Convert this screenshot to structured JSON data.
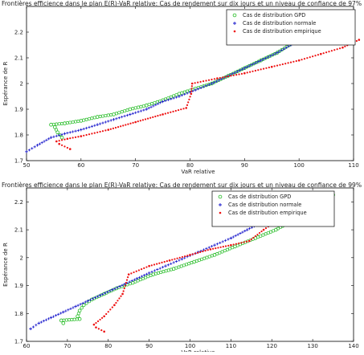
{
  "chart_data": [
    {
      "type": "scatter",
      "title": "Frontières efficience dans le plan E(R)-VaR relative: Cas de rendement sur dix jours et un niveau de confiance de 97%",
      "xlabel": "VaR relative",
      "ylabel": "Espérance de R",
      "xlim": [
        50,
        110
      ],
      "ylim": [
        1.7,
        2.3
      ],
      "xticks": [
        "50",
        "60",
        "70",
        "80",
        "90",
        "100",
        "110"
      ],
      "yticks": [
        "1.7",
        "1.8",
        "1.9",
        "2",
        "2.1",
        "2.2"
      ],
      "legend_position": "top-right",
      "series": [
        {
          "name": "Cas de distribution GPD",
          "marker": "circle",
          "color": "#22bb22",
          "points": [
            [
              56.5,
              1.79
            ],
            [
              55.7,
              1.81
            ],
            [
              55.2,
              1.83
            ],
            [
              54.5,
              1.84
            ],
            [
              57,
              1.845
            ],
            [
              60,
              1.855
            ],
            [
              63,
              1.87
            ],
            [
              66,
              1.88
            ],
            [
              69,
              1.9
            ],
            [
              72,
              1.915
            ],
            [
              75,
              1.935
            ],
            [
              78,
              1.96
            ],
            [
              81,
              1.98
            ],
            [
              84,
              2.0
            ],
            [
              87,
              2.03
            ],
            [
              90,
              2.06
            ],
            [
              93,
              2.09
            ],
            [
              96,
              2.12
            ],
            [
              99,
              2.16
            ],
            [
              101.5,
              2.19
            ],
            [
              103.5,
              2.21
            ],
            [
              105.5,
              2.235
            ]
          ]
        },
        {
          "name": "Cas de distribution normale",
          "marker": "plus",
          "color": "#1a1acc",
          "points": [
            [
              50,
              1.735
            ],
            [
              52,
              1.76
            ],
            [
              54.5,
              1.79
            ],
            [
              57,
              1.805
            ],
            [
              60,
              1.82
            ],
            [
              63,
              1.84
            ],
            [
              66,
              1.86
            ],
            [
              69,
              1.88
            ],
            [
              72,
              1.9
            ],
            [
              75,
              1.93
            ],
            [
              78,
              1.95
            ],
            [
              81,
              1.975
            ],
            [
              84,
              2.0
            ],
            [
              87,
              2.03
            ],
            [
              90,
              2.06
            ],
            [
              93,
              2.09
            ],
            [
              96,
              2.12
            ],
            [
              98.5,
              2.15
            ],
            [
              100.5,
              2.175
            ],
            [
              102.5,
              2.2
            ],
            [
              104.5,
              2.215
            ]
          ]
        },
        {
          "name": "Cas de distribution empirique",
          "marker": "dot",
          "color": "#ee1111",
          "points": [
            [
              58,
              1.745
            ],
            [
              56,
              1.765
            ],
            [
              55.5,
              1.775
            ],
            [
              57.5,
              1.785
            ],
            [
              60,
              1.795
            ],
            [
              65,
              1.82
            ],
            [
              70,
              1.85
            ],
            [
              75,
              1.88
            ],
            [
              79.3,
              1.905
            ],
            [
              80.2,
              1.96
            ],
            [
              80.4,
              2.0
            ],
            [
              85,
              2.02
            ],
            [
              90,
              2.04
            ],
            [
              95,
              2.065
            ],
            [
              100,
              2.09
            ],
            [
              104,
              2.115
            ],
            [
              108,
              2.14
            ],
            [
              111,
              2.17
            ]
          ]
        }
      ]
    },
    {
      "type": "scatter",
      "title": "Frontières efficience dans le plan E(R)-VaR relative: Cas de rendement sur dix jours et un niveau de confiance de 99%",
      "xlabel": "VaR relative",
      "ylabel": "Espérance de R",
      "xlim": [
        60,
        140
      ],
      "ylim": [
        1.7,
        2.25
      ],
      "xticks": [
        "60",
        "70",
        "80",
        "90",
        "100",
        "110",
        "120",
        "130",
        "140"
      ],
      "yticks": [
        "1.7",
        "1.8",
        "1.9",
        "2",
        "2.1",
        "2.2"
      ],
      "legend_position": "top-right",
      "series": [
        {
          "name": "Cas de distribution GPD",
          "marker": "circle",
          "color": "#22bb22",
          "points": [
            [
              69,
              1.765
            ],
            [
              68.5,
              1.775
            ],
            [
              73,
              1.78
            ],
            [
              72.5,
              1.79
            ],
            [
              73,
              1.81
            ],
            [
              74,
              1.83
            ],
            [
              76,
              1.85
            ],
            [
              79,
              1.87
            ],
            [
              82,
              1.89
            ],
            [
              86,
              1.91
            ],
            [
              91,
              1.94
            ],
            [
              96,
              1.96
            ],
            [
              101,
              1.985
            ],
            [
              106,
              2.01
            ],
            [
              111,
              2.04
            ],
            [
              116,
              2.07
            ],
            [
              121,
              2.1
            ],
            [
              126,
              2.14
            ],
            [
              130,
              2.175
            ],
            [
              133,
              2.205
            ],
            [
              135,
              2.225
            ]
          ]
        },
        {
          "name": "Cas de distribution normale",
          "marker": "plus",
          "color": "#1a1acc",
          "points": [
            [
              61,
              1.745
            ],
            [
              63,
              1.765
            ],
            [
              66,
              1.785
            ],
            [
              69,
              1.805
            ],
            [
              72,
              1.825
            ],
            [
              75,
              1.845
            ],
            [
              78,
              1.865
            ],
            [
              81,
              1.885
            ],
            [
              84,
              1.905
            ],
            [
              87,
              1.925
            ],
            [
              90,
              1.945
            ],
            [
              94,
              1.97
            ],
            [
              98,
              1.995
            ],
            [
              102,
              2.02
            ],
            [
              106,
              2.045
            ],
            [
              110,
              2.07
            ],
            [
              114,
              2.1
            ],
            [
              118,
              2.13
            ],
            [
              122,
              2.16
            ],
            [
              126,
              2.195
            ],
            [
              129,
              2.22
            ]
          ]
        },
        {
          "name": "Cas de distribution empirique",
          "marker": "dot",
          "color": "#ee1111",
          "points": [
            [
              79,
              1.735
            ],
            [
              77,
              1.75
            ],
            [
              76.5,
              1.76
            ],
            [
              79,
              1.79
            ],
            [
              81.5,
              1.83
            ],
            [
              83.5,
              1.87
            ],
            [
              85,
              1.94
            ],
            [
              90,
              1.97
            ],
            [
              95,
              1.99
            ],
            [
              100,
              2.01
            ],
            [
              105,
              2.03
            ],
            [
              110,
              2.045
            ],
            [
              114.5,
              2.06
            ],
            [
              118,
              2.1
            ],
            [
              122,
              2.14
            ],
            [
              126,
              2.18
            ],
            [
              129,
              2.21
            ],
            [
              131,
              2.22
            ],
            [
              134,
              2.225
            ]
          ]
        }
      ]
    }
  ]
}
